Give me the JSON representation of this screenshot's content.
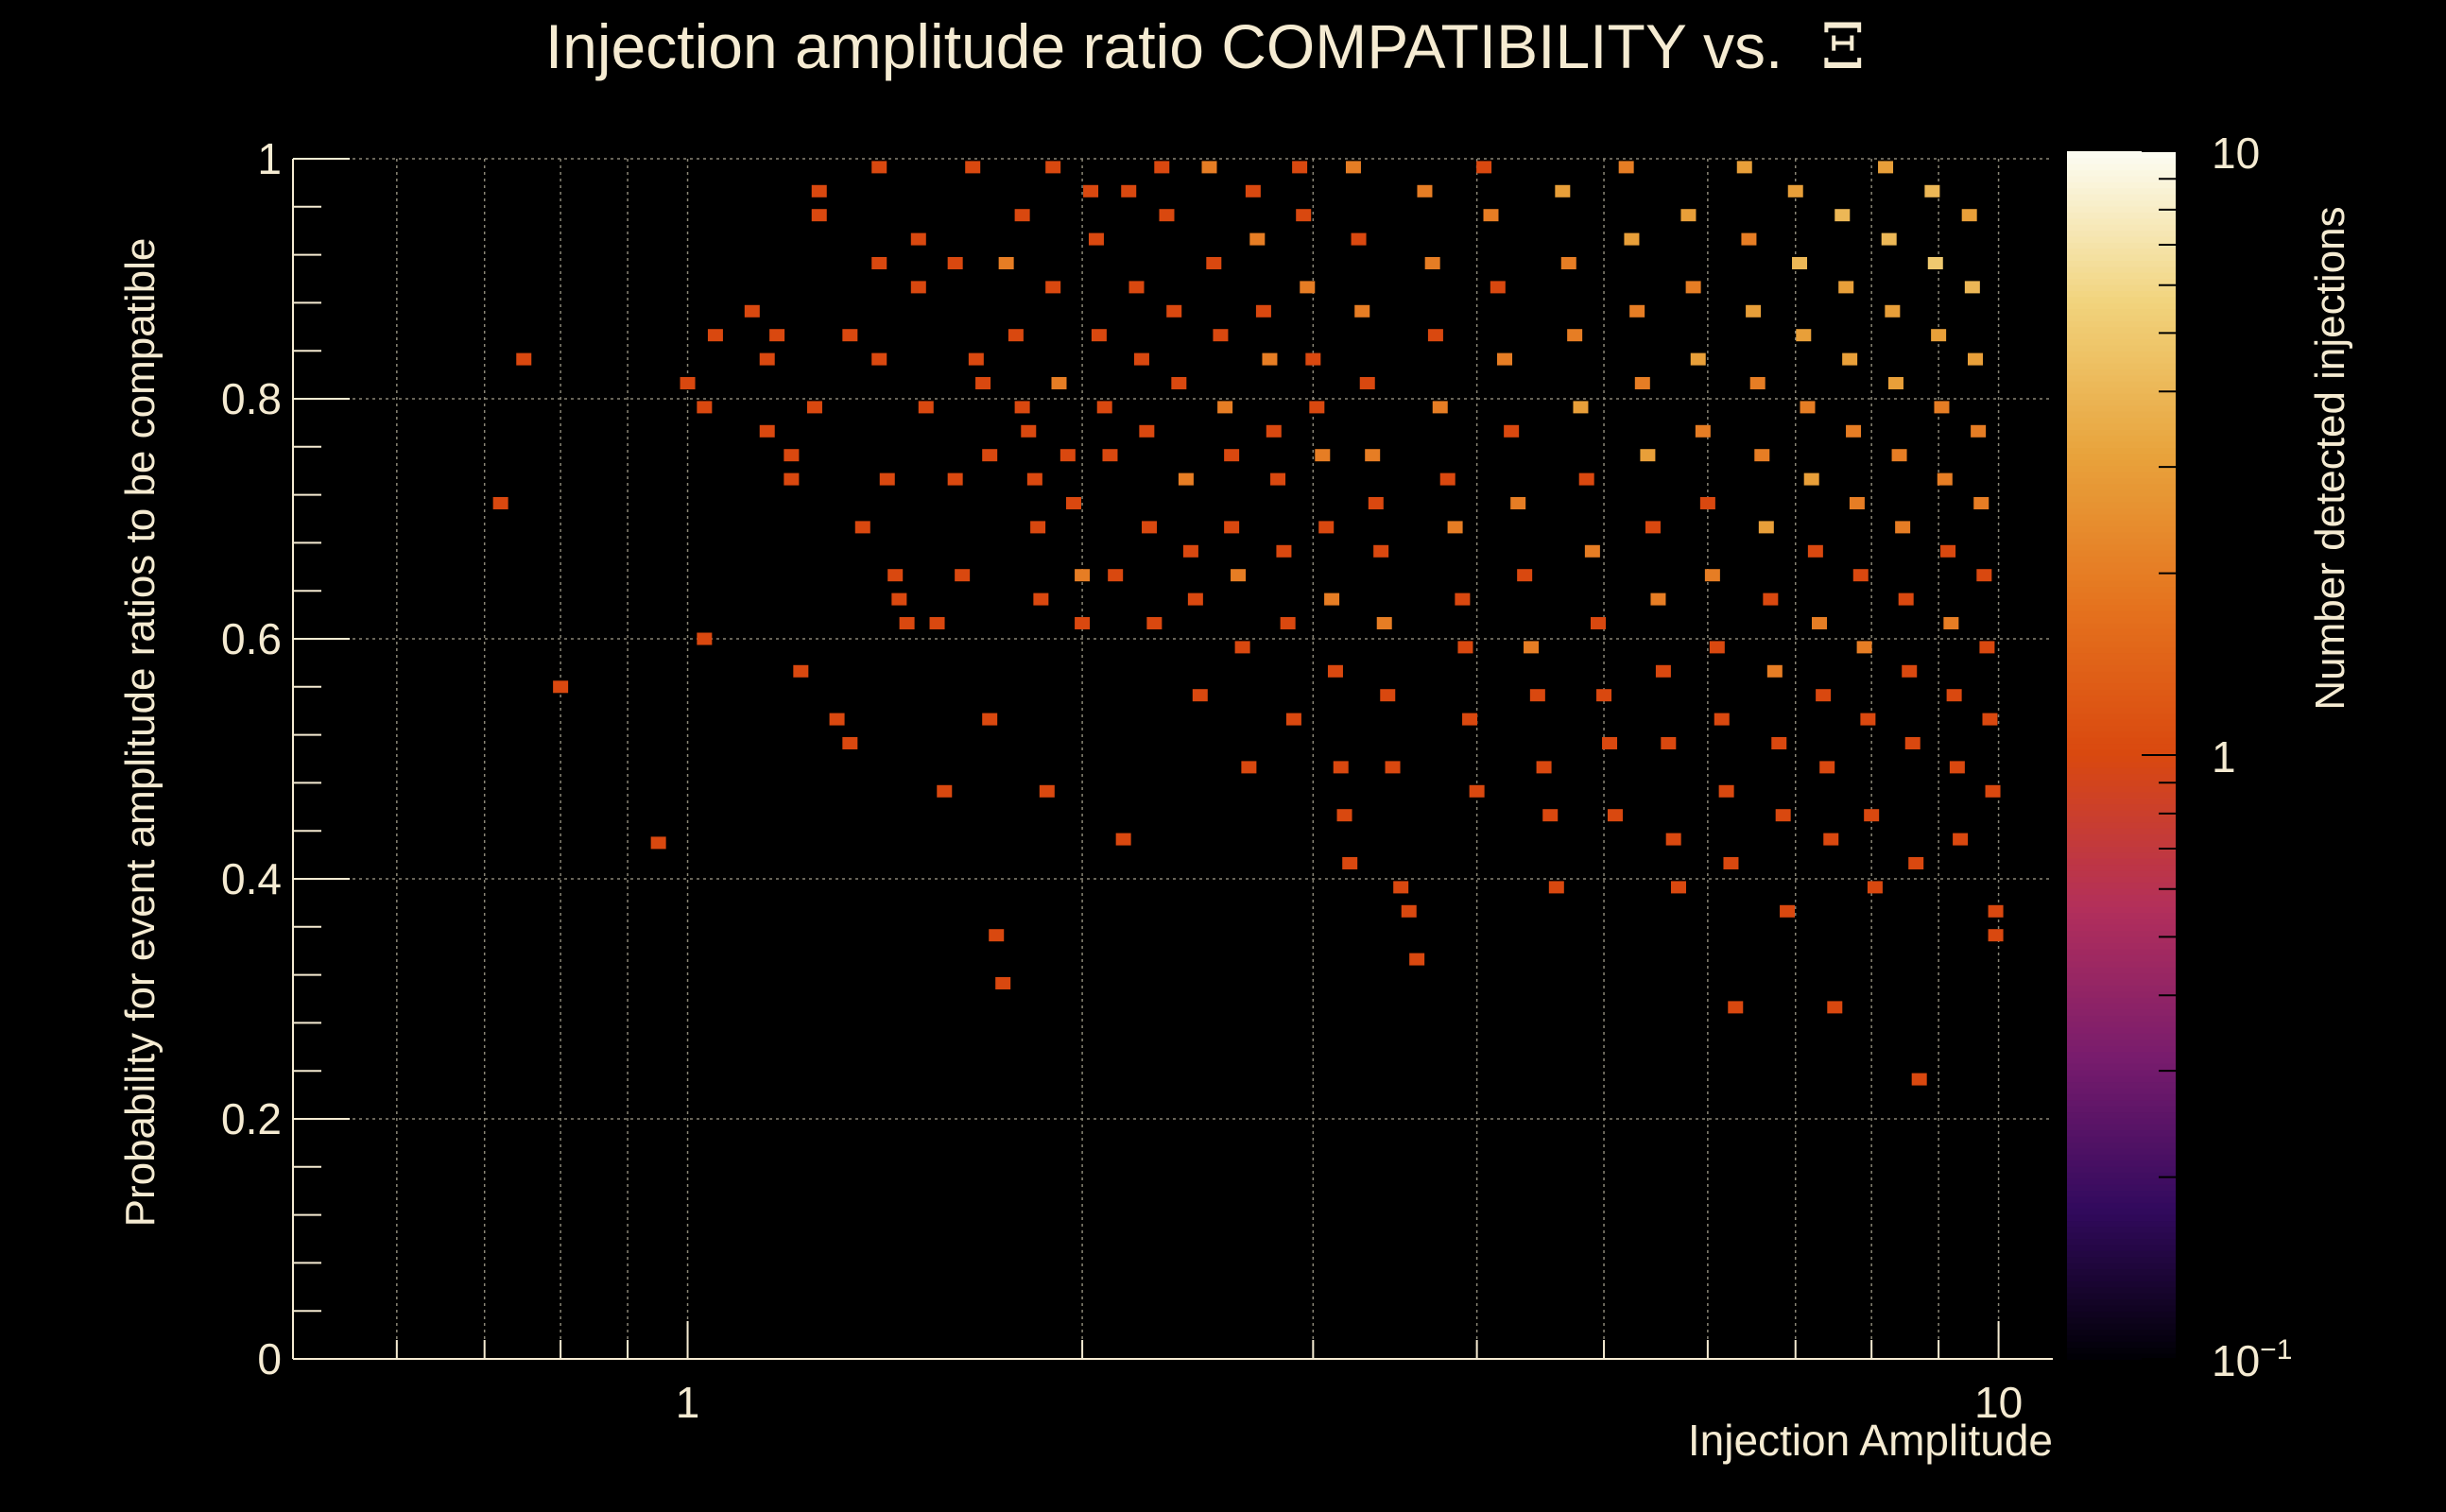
{
  "chart_data": {
    "type": "heatmap",
    "title": "Injection amplitude ratio COMPATIBILITY vs.",
    "title_symbol": "Ξ",
    "xlabel": "Injection Amplitude",
    "ylabel": "Probability for event amplitude ratios to be compatible",
    "zlabel": "Number detected injections",
    "x_scale": "log",
    "xlim": [
      0.5,
      11
    ],
    "ylim": [
      0,
      1
    ],
    "zlim": [
      0.1,
      10
    ],
    "z_scale": "log",
    "x_ticks": [
      {
        "value": 1,
        "label": "1"
      },
      {
        "value": 10,
        "label": "10"
      }
    ],
    "y_ticks": [
      {
        "value": 0,
        "label": "0"
      },
      {
        "value": 0.2,
        "label": "0.2"
      },
      {
        "value": 0.4,
        "label": "0.4"
      },
      {
        "value": 0.6,
        "label": "0.6"
      },
      {
        "value": 0.8,
        "label": "0.8"
      },
      {
        "value": 1,
        "label": "1"
      }
    ],
    "z_ticks": [
      {
        "value": 0.1,
        "label": "10",
        "sup": "−1"
      },
      {
        "value": 1,
        "label": "1",
        "sup": ""
      },
      {
        "value": 10,
        "label": "10",
        "sup": ""
      }
    ],
    "grid": true,
    "colormap": [
      "#000004",
      "#320a5e",
      "#781c6d",
      "#b32f5b",
      "#d9480f",
      "#e5731e",
      "#e8a33c",
      "#f1d37c",
      "#fcfdf3"
    ],
    "cells_note_units": "x = injection amplitude, y = probability, z = count",
    "cells": [
      [
        0.75,
        0.833,
        1
      ],
      [
        0.72,
        0.713,
        1
      ],
      [
        0.8,
        0.56,
        1
      ],
      [
        0.95,
        0.43,
        1
      ],
      [
        1.0,
        0.813,
        1
      ],
      [
        1.03,
        0.793,
        1
      ],
      [
        1.03,
        0.6,
        1
      ],
      [
        1.05,
        0.853,
        1
      ],
      [
        1.12,
        0.873,
        1
      ],
      [
        1.15,
        0.773,
        1
      ],
      [
        1.15,
        0.833,
        1
      ],
      [
        1.17,
        0.853,
        1
      ],
      [
        1.2,
        0.753,
        1
      ],
      [
        1.2,
        0.733,
        1
      ],
      [
        1.22,
        0.573,
        1
      ],
      [
        1.25,
        0.793,
        1
      ],
      [
        1.26,
        0.973,
        1
      ],
      [
        1.26,
        0.953,
        1
      ],
      [
        1.3,
        0.533,
        1
      ],
      [
        1.33,
        0.853,
        1
      ],
      [
        1.33,
        0.513,
        1
      ],
      [
        1.36,
        0.693,
        1
      ],
      [
        1.4,
        0.993,
        1
      ],
      [
        1.4,
        0.913,
        1
      ],
      [
        1.4,
        0.833,
        1
      ],
      [
        1.42,
        0.733,
        1
      ],
      [
        1.44,
        0.653,
        1
      ],
      [
        1.45,
        0.633,
        1
      ],
      [
        1.47,
        0.613,
        1
      ],
      [
        1.5,
        0.933,
        1
      ],
      [
        1.5,
        0.893,
        1
      ],
      [
        1.52,
        0.793,
        1
      ],
      [
        1.55,
        0.613,
        1
      ],
      [
        1.57,
        0.473,
        1
      ],
      [
        1.6,
        0.913,
        1
      ],
      [
        1.6,
        0.733,
        1
      ],
      [
        1.62,
        0.653,
        1
      ],
      [
        1.65,
        0.993,
        1
      ],
      [
        1.66,
        0.833,
        1
      ],
      [
        1.68,
        0.813,
        1
      ],
      [
        1.7,
        0.753,
        1
      ],
      [
        1.7,
        0.533,
        1
      ],
      [
        1.72,
        0.353,
        1
      ],
      [
        1.74,
        0.313,
        1
      ],
      [
        1.75,
        0.913,
        2
      ],
      [
        1.78,
        0.853,
        1
      ],
      [
        1.8,
        0.953,
        1
      ],
      [
        1.8,
        0.793,
        1
      ],
      [
        1.82,
        0.773,
        1
      ],
      [
        1.84,
        0.733,
        1
      ],
      [
        1.85,
        0.693,
        1
      ],
      [
        1.86,
        0.633,
        1
      ],
      [
        1.88,
        0.473,
        1
      ],
      [
        1.9,
        0.993,
        1
      ],
      [
        1.9,
        0.893,
        1
      ],
      [
        1.92,
        0.813,
        2
      ],
      [
        1.95,
        0.753,
        1
      ],
      [
        1.97,
        0.713,
        1
      ],
      [
        2.0,
        0.653,
        2
      ],
      [
        2.0,
        0.613,
        1
      ],
      [
        2.03,
        0.973,
        1
      ],
      [
        2.05,
        0.933,
        1
      ],
      [
        2.06,
        0.853,
        1
      ],
      [
        2.08,
        0.793,
        1
      ],
      [
        2.1,
        0.753,
        1
      ],
      [
        2.12,
        0.653,
        1
      ],
      [
        2.15,
        0.433,
        1
      ],
      [
        2.17,
        0.973,
        1
      ],
      [
        2.2,
        0.893,
        1
      ],
      [
        2.22,
        0.833,
        1
      ],
      [
        2.24,
        0.773,
        1
      ],
      [
        2.25,
        0.693,
        1
      ],
      [
        2.27,
        0.613,
        1
      ],
      [
        2.3,
        0.993,
        1
      ],
      [
        2.32,
        0.953,
        1
      ],
      [
        2.35,
        0.873,
        1
      ],
      [
        2.37,
        0.813,
        1
      ],
      [
        2.4,
        0.733,
        2
      ],
      [
        2.42,
        0.673,
        1
      ],
      [
        2.44,
        0.633,
        1
      ],
      [
        2.46,
        0.553,
        1
      ],
      [
        2.5,
        0.993,
        2
      ],
      [
        2.52,
        0.913,
        1
      ],
      [
        2.55,
        0.853,
        1
      ],
      [
        2.57,
        0.793,
        2
      ],
      [
        2.6,
        0.753,
        1
      ],
      [
        2.6,
        0.693,
        1
      ],
      [
        2.63,
        0.653,
        2
      ],
      [
        2.65,
        0.593,
        1
      ],
      [
        2.68,
        0.493,
        1
      ],
      [
        2.7,
        0.973,
        1
      ],
      [
        2.72,
        0.933,
        2
      ],
      [
        2.75,
        0.873,
        1
      ],
      [
        2.78,
        0.833,
        2
      ],
      [
        2.8,
        0.773,
        1
      ],
      [
        2.82,
        0.733,
        1
      ],
      [
        2.85,
        0.673,
        1
      ],
      [
        2.87,
        0.613,
        1
      ],
      [
        2.9,
        0.533,
        1
      ],
      [
        2.93,
        0.993,
        1
      ],
      [
        2.95,
        0.953,
        1
      ],
      [
        2.97,
        0.893,
        2
      ],
      [
        3.0,
        0.833,
        1
      ],
      [
        3.02,
        0.793,
        1
      ],
      [
        3.05,
        0.753,
        2
      ],
      [
        3.07,
        0.693,
        1
      ],
      [
        3.1,
        0.633,
        2
      ],
      [
        3.12,
        0.573,
        1
      ],
      [
        3.15,
        0.493,
        1
      ],
      [
        3.17,
        0.453,
        1
      ],
      [
        3.2,
        0.413,
        1
      ],
      [
        3.22,
        0.993,
        2
      ],
      [
        3.25,
        0.933,
        1
      ],
      [
        3.27,
        0.873,
        2
      ],
      [
        3.3,
        0.813,
        1
      ],
      [
        3.33,
        0.753,
        2
      ],
      [
        3.35,
        0.713,
        1
      ],
      [
        3.38,
        0.673,
        1
      ],
      [
        3.4,
        0.613,
        2
      ],
      [
        3.42,
        0.553,
        1
      ],
      [
        3.45,
        0.493,
        1
      ],
      [
        3.5,
        0.393,
        1
      ],
      [
        3.55,
        0.373,
        1
      ],
      [
        3.6,
        0.333,
        1
      ],
      [
        3.65,
        0.973,
        2
      ],
      [
        3.7,
        0.913,
        2
      ],
      [
        3.72,
        0.853,
        1
      ],
      [
        3.75,
        0.793,
        2
      ],
      [
        3.8,
        0.733,
        1
      ],
      [
        3.85,
        0.693,
        2
      ],
      [
        3.9,
        0.633,
        1
      ],
      [
        3.92,
        0.593,
        1
      ],
      [
        3.95,
        0.533,
        1
      ],
      [
        4.0,
        0.473,
        1
      ],
      [
        4.05,
        0.993,
        1
      ],
      [
        4.1,
        0.953,
        2
      ],
      [
        4.15,
        0.893,
        1
      ],
      [
        4.2,
        0.833,
        2
      ],
      [
        4.25,
        0.773,
        1
      ],
      [
        4.3,
        0.713,
        2
      ],
      [
        4.35,
        0.653,
        1
      ],
      [
        4.4,
        0.593,
        2
      ],
      [
        4.45,
        0.553,
        1
      ],
      [
        4.5,
        0.493,
        1
      ],
      [
        4.55,
        0.453,
        1
      ],
      [
        4.6,
        0.393,
        1
      ],
      [
        4.65,
        0.973,
        3
      ],
      [
        4.7,
        0.913,
        2
      ],
      [
        4.75,
        0.853,
        2
      ],
      [
        4.8,
        0.793,
        3
      ],
      [
        4.85,
        0.733,
        1
      ],
      [
        4.9,
        0.673,
        2
      ],
      [
        4.95,
        0.613,
        1
      ],
      [
        5.0,
        0.553,
        1
      ],
      [
        5.05,
        0.513,
        1
      ],
      [
        5.1,
        0.453,
        1
      ],
      [
        5.2,
        0.993,
        2
      ],
      [
        5.25,
        0.933,
        3
      ],
      [
        5.3,
        0.873,
        2
      ],
      [
        5.35,
        0.813,
        2
      ],
      [
        5.4,
        0.753,
        3
      ],
      [
        5.45,
        0.693,
        1
      ],
      [
        5.5,
        0.633,
        2
      ],
      [
        5.55,
        0.573,
        1
      ],
      [
        5.6,
        0.513,
        1
      ],
      [
        5.65,
        0.433,
        1
      ],
      [
        5.7,
        0.393,
        1
      ],
      [
        5.8,
        0.953,
        3
      ],
      [
        5.85,
        0.893,
        2
      ],
      [
        5.9,
        0.833,
        3
      ],
      [
        5.95,
        0.773,
        2
      ],
      [
        6.0,
        0.713,
        1
      ],
      [
        6.05,
        0.653,
        2
      ],
      [
        6.1,
        0.593,
        1
      ],
      [
        6.15,
        0.533,
        1
      ],
      [
        6.2,
        0.473,
        1
      ],
      [
        6.25,
        0.413,
        1
      ],
      [
        6.3,
        0.293,
        1
      ],
      [
        6.4,
        0.993,
        3
      ],
      [
        6.45,
        0.933,
        2
      ],
      [
        6.5,
        0.873,
        3
      ],
      [
        6.55,
        0.813,
        2
      ],
      [
        6.6,
        0.753,
        2
      ],
      [
        6.65,
        0.693,
        3
      ],
      [
        6.7,
        0.633,
        1
      ],
      [
        6.75,
        0.573,
        2
      ],
      [
        6.8,
        0.513,
        1
      ],
      [
        6.85,
        0.453,
        1
      ],
      [
        6.9,
        0.373,
        1
      ],
      [
        7.0,
        0.973,
        3
      ],
      [
        7.05,
        0.913,
        4
      ],
      [
        7.1,
        0.853,
        3
      ],
      [
        7.15,
        0.793,
        2
      ],
      [
        7.2,
        0.733,
        3
      ],
      [
        7.25,
        0.673,
        1
      ],
      [
        7.3,
        0.613,
        2
      ],
      [
        7.35,
        0.553,
        1
      ],
      [
        7.4,
        0.493,
        1
      ],
      [
        7.45,
        0.433,
        1
      ],
      [
        7.5,
        0.293,
        1
      ],
      [
        7.6,
        0.953,
        4
      ],
      [
        7.65,
        0.893,
        3
      ],
      [
        7.7,
        0.833,
        3
      ],
      [
        7.75,
        0.773,
        2
      ],
      [
        7.8,
        0.713,
        2
      ],
      [
        7.85,
        0.653,
        1
      ],
      [
        7.9,
        0.593,
        2
      ],
      [
        7.95,
        0.533,
        1
      ],
      [
        8.0,
        0.453,
        1
      ],
      [
        8.05,
        0.393,
        1
      ],
      [
        8.2,
        0.993,
        3
      ],
      [
        8.25,
        0.933,
        4
      ],
      [
        8.3,
        0.873,
        3
      ],
      [
        8.35,
        0.813,
        3
      ],
      [
        8.4,
        0.753,
        2
      ],
      [
        8.45,
        0.693,
        2
      ],
      [
        8.5,
        0.633,
        1
      ],
      [
        8.55,
        0.573,
        1
      ],
      [
        8.6,
        0.513,
        1
      ],
      [
        8.65,
        0.413,
        1
      ],
      [
        8.7,
        0.233,
        1
      ],
      [
        8.9,
        0.973,
        4
      ],
      [
        8.95,
        0.913,
        5
      ],
      [
        9.0,
        0.853,
        3
      ],
      [
        9.05,
        0.793,
        2
      ],
      [
        9.1,
        0.733,
        2
      ],
      [
        9.15,
        0.673,
        1
      ],
      [
        9.2,
        0.613,
        2
      ],
      [
        9.25,
        0.553,
        1
      ],
      [
        9.3,
        0.493,
        1
      ],
      [
        9.35,
        0.433,
        1
      ],
      [
        9.5,
        0.953,
        3
      ],
      [
        9.55,
        0.893,
        4
      ],
      [
        9.6,
        0.833,
        3
      ],
      [
        9.65,
        0.773,
        2
      ],
      [
        9.7,
        0.713,
        2
      ],
      [
        9.75,
        0.653,
        1
      ],
      [
        9.8,
        0.593,
        1
      ],
      [
        9.85,
        0.533,
        1
      ],
      [
        9.9,
        0.473,
        1
      ],
      [
        9.95,
        0.373,
        1
      ],
      [
        9.95,
        0.353,
        1
      ]
    ]
  }
}
